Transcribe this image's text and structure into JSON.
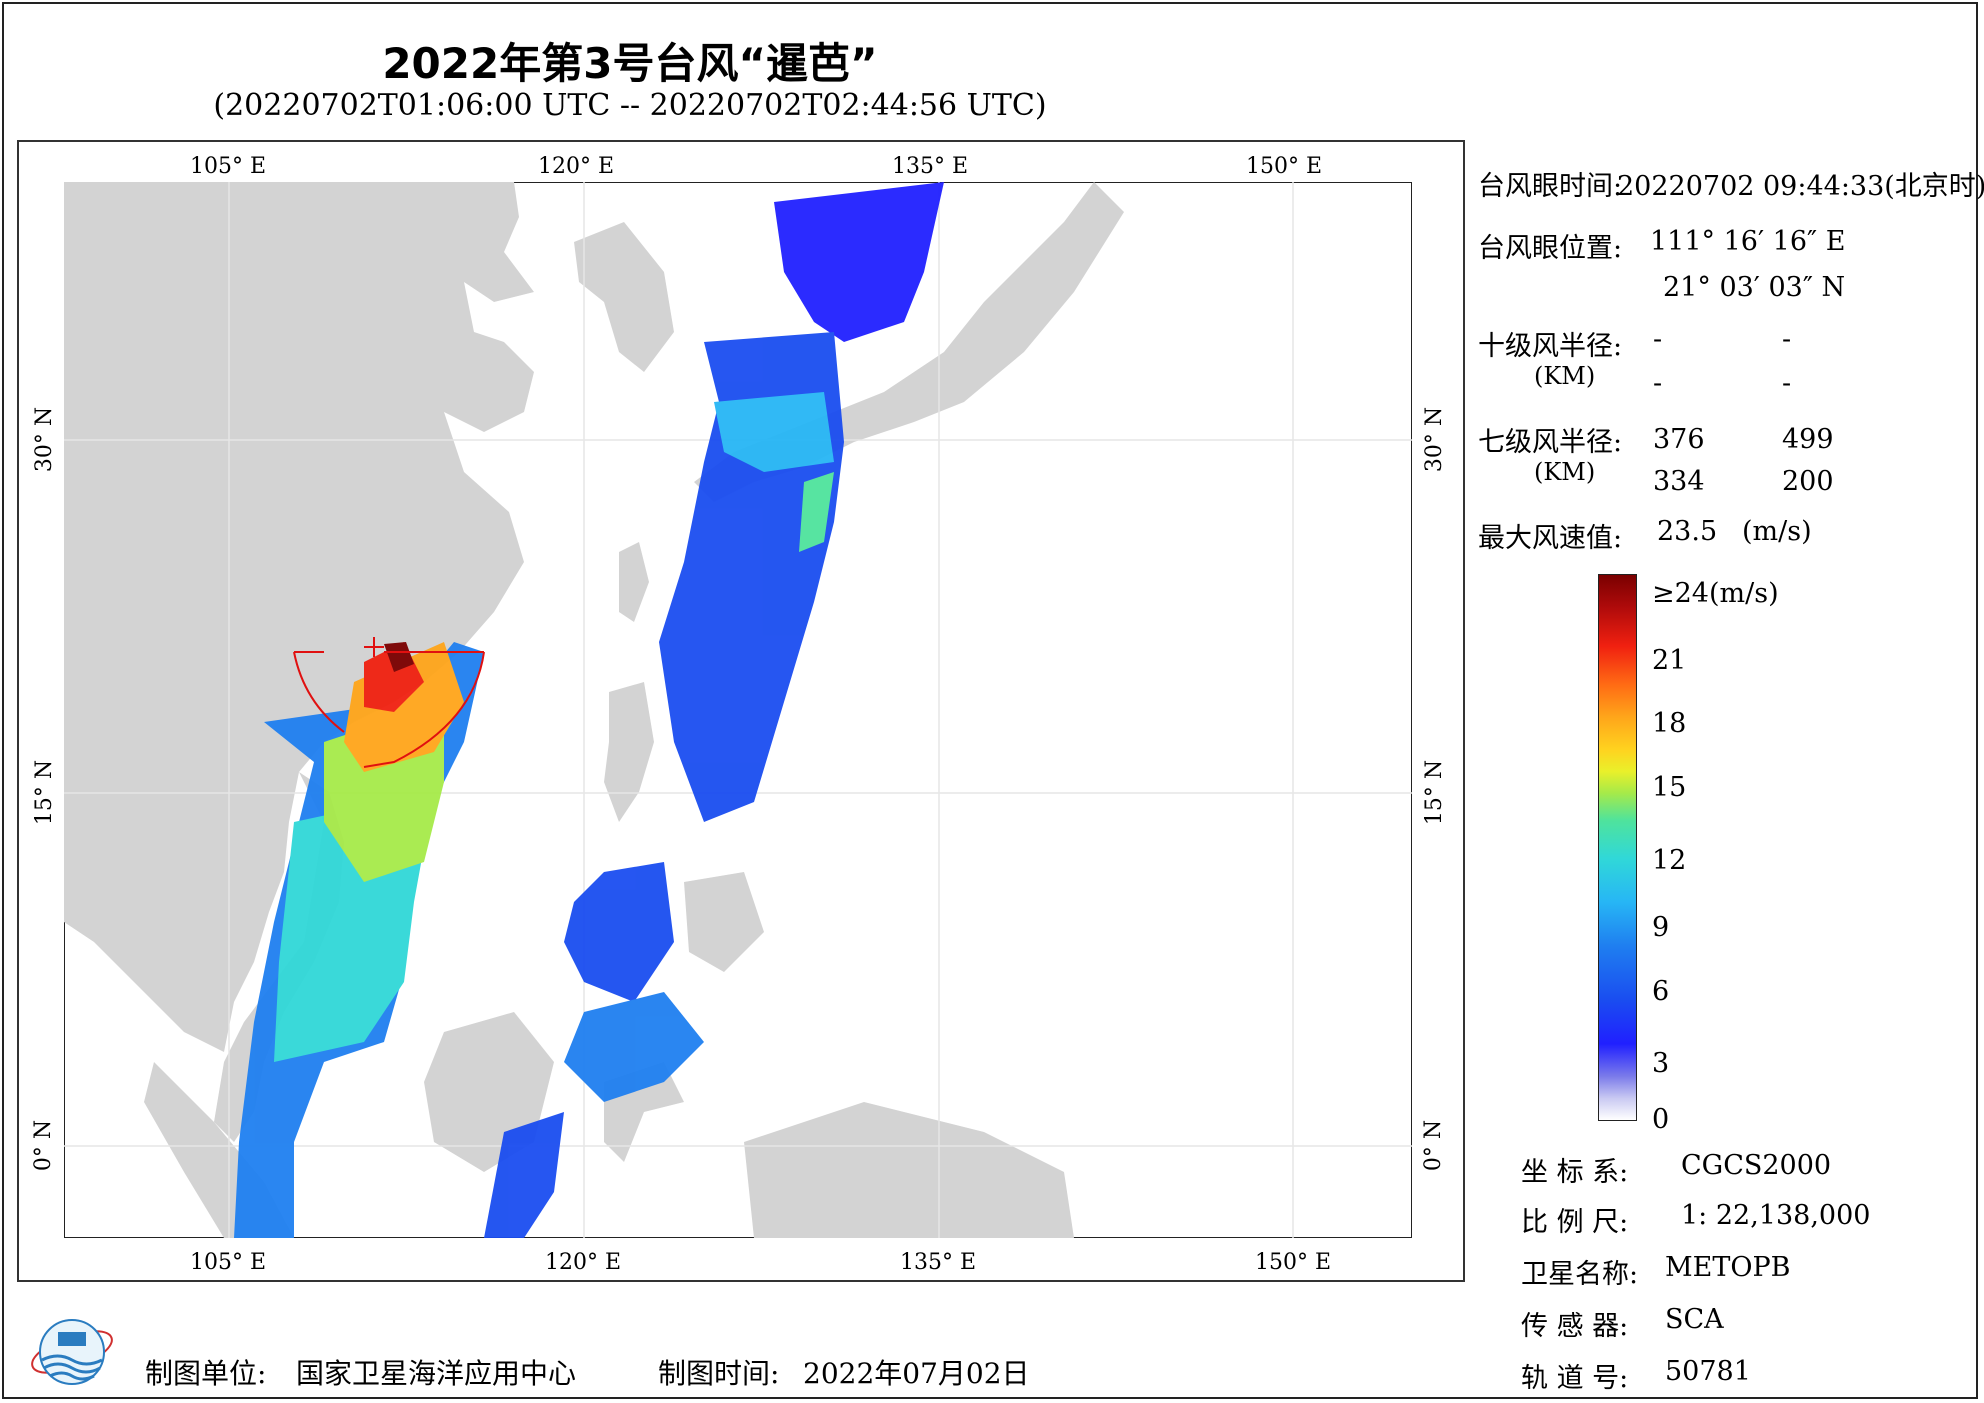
{
  "header": {
    "title": "2022年第3号台风“暹芭”",
    "subtitle": "(20220702T01:06:00 UTC -- 20220702T02:44:56 UTC)"
  },
  "axes": {
    "lon_labels": [
      "105° E",
      "120° E",
      "135° E",
      "150° E"
    ],
    "lat_labels": [
      "30° N",
      "15° N",
      "0° N"
    ]
  },
  "info": {
    "eye_time_label": "台风眼时间:",
    "eye_time": "20220702 09:44:33(北京时)",
    "eye_pos_label": "台风眼位置:",
    "eye_lon": "111° 16′ 16″ E",
    "eye_lat": "21° 03′ 03″ N",
    "r10_label": "十级风半径:",
    "km_label": "(KM)",
    "r10_values": [
      "-",
      "-",
      "-",
      "-"
    ],
    "r7_label": "七级风半径:",
    "r7_values": [
      "376",
      "499",
      "334",
      "200"
    ],
    "max_wind_label": "最大风速值:",
    "max_wind_value": "23.5",
    "max_wind_unit": "(m/s)"
  },
  "colorbar": {
    "labels": [
      "≥24(m/s)",
      "21",
      "18",
      "15",
      "12",
      "9",
      "6",
      "3",
      "0"
    ],
    "colors": [
      "#ffffff",
      "#7b7bea",
      "#2020ff",
      "#1f7ff0",
      "#30d8d8",
      "#a6ea49",
      "#ffd21f",
      "#ff6a14",
      "#f02010",
      "#7a0000"
    ]
  },
  "meta": {
    "crs_label": "坐 标 系:",
    "crs_value": "CGCS2000",
    "scale_label": "比 例 尺:",
    "scale_value": "1: 22,138,000",
    "sat_label": "卫星名称:",
    "sat_value": "METOPB",
    "sensor_label": "传 感 器:",
    "sensor_value": "SCA",
    "orbit_label": "轨 道 号:",
    "orbit_value": "50781"
  },
  "footer": {
    "unit_label": "制图单位:",
    "unit_value": "国家卫星海洋应用中心",
    "time_label": "制图时间:",
    "time_value": "2022年07月02日"
  },
  "map": {
    "land_color": "#d3d3d3",
    "graticule_color": "#e6e6e6",
    "typhoon_circle_color": "#e01010"
  }
}
